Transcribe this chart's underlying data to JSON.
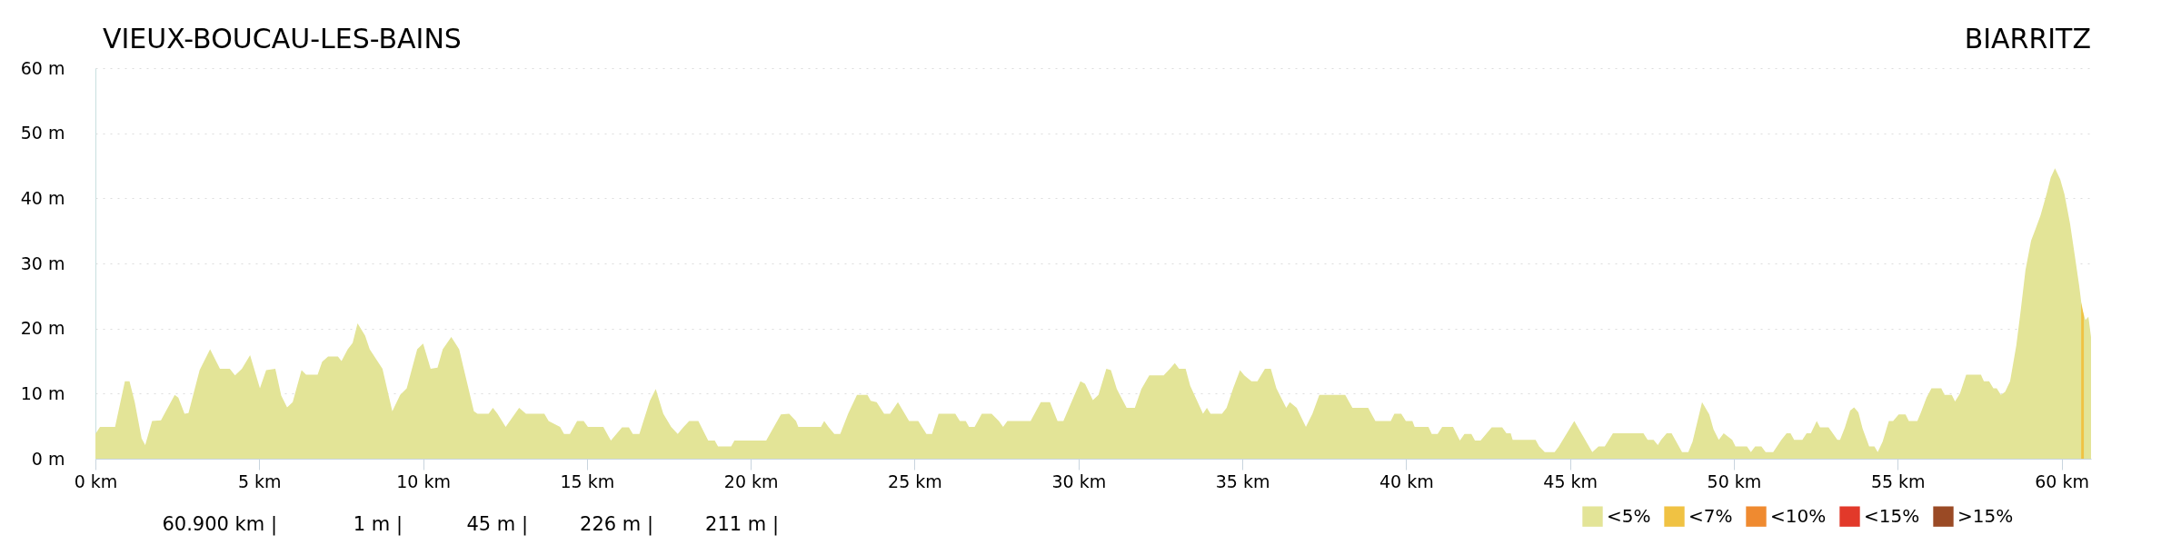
{
  "chart_data": {
    "type": "area",
    "title": "VIEUX-BOUCAU-LES-BAINS",
    "subtitle": "BIARRITZ",
    "xlim": [
      0,
      60.9
    ],
    "ylim": [
      0,
      60
    ],
    "xticks": [
      {
        "value": 0,
        "label": "0 km"
      },
      {
        "value": 5,
        "label": "5 km"
      },
      {
        "value": 10,
        "label": "10 km"
      },
      {
        "value": 15,
        "label": "15 km"
      },
      {
        "value": 20,
        "label": "20 km"
      },
      {
        "value": 25,
        "label": "25 km"
      },
      {
        "value": 30,
        "label": "30 km"
      },
      {
        "value": 35,
        "label": "35 km"
      },
      {
        "value": 40,
        "label": "40 km"
      },
      {
        "value": 45,
        "label": "45 km"
      },
      {
        "value": 50,
        "label": "50 km"
      },
      {
        "value": 55,
        "label": "55 km"
      },
      {
        "value": 60,
        "label": "60 km"
      }
    ],
    "yticks": [
      {
        "value": 0,
        "label": "0 m"
      },
      {
        "value": 10,
        "label": "10 m"
      },
      {
        "value": 20,
        "label": "20 m"
      },
      {
        "value": 30,
        "label": "30 m"
      },
      {
        "value": 40,
        "label": "40 m"
      },
      {
        "value": 50,
        "label": "50 m"
      },
      {
        "value": 60,
        "label": "60 m"
      }
    ],
    "grid": "y",
    "legend": "bottom right",
    "annotations": [
      "60.900 km |",
      "1 m |",
      "45 m |",
      "226 m |",
      "211 m |"
    ],
    "series": [
      {
        "name": "<5%",
        "color": "#e3e497",
        "x": [
          0,
          0.14,
          0.6,
          0.9,
          1.04,
          1.2,
          1.41,
          1.52,
          1.73,
          2.0,
          2.42,
          2.53,
          2.72,
          2.84,
          3.18,
          3.5,
          3.8,
          4.1,
          4.26,
          4.47,
          4.72,
          5.02,
          5.21,
          5.49,
          5.67,
          5.85,
          6.02,
          6.29,
          6.43,
          6.78,
          6.92,
          7.1,
          7.4,
          7.51,
          7.7,
          7.85,
          8.0,
          8.23,
          8.37,
          8.76,
          9.06,
          9.3,
          9.5,
          9.82,
          10.0,
          10.23,
          10.44,
          10.6,
          10.86,
          11.1,
          11.35,
          11.55,
          11.66,
          12.0,
          12.13,
          12.27,
          12.52,
          12.93,
          13.14,
          13.7,
          13.83,
          14.18,
          14.3,
          14.48,
          14.7,
          14.9,
          15.03,
          15.5,
          15.73,
          15.9,
          16.07,
          16.28,
          16.4,
          16.6,
          16.92,
          17.1,
          17.33,
          17.57,
          17.77,
          17.95,
          18.12,
          18.4,
          18.7,
          18.9,
          19.0,
          19.4,
          19.5,
          20.47,
          20.92,
          21.17,
          21.38,
          21.45,
          22.14,
          22.24,
          22.37,
          22.55,
          22.73,
          22.97,
          23.24,
          23.56,
          23.66,
          23.84,
          24.07,
          24.25,
          24.49,
          24.83,
          25.11,
          25.36,
          25.53,
          25.73,
          26.24,
          26.38,
          26.56,
          26.66,
          26.83,
          27.05,
          27.35,
          27.57,
          27.7,
          27.83,
          28.54,
          28.85,
          29.13,
          29.36,
          29.54,
          29.88,
          30.06,
          30.2,
          30.44,
          30.61,
          30.85,
          30.99,
          31.17,
          31.47,
          31.72,
          31.92,
          32.16,
          32.6,
          32.79,
          32.94,
          33.07,
          33.27,
          33.41,
          33.8,
          33.92,
          34.03,
          34.38,
          34.52,
          34.72,
          34.93,
          35.06,
          35.28,
          35.46,
          35.69,
          35.87,
          36.04,
          36.34,
          36.45,
          36.66,
          36.94,
          37.14,
          37.35,
          38.14,
          38.36,
          38.84,
          39.06,
          39.53,
          39.64,
          39.85,
          39.99,
          40.19,
          40.26,
          40.68,
          40.78,
          40.96,
          41.1,
          41.43,
          41.64,
          41.78,
          41.99,
          42.1,
          42.27,
          42.61,
          42.93,
          43.06,
          43.19,
          43.25,
          43.95,
          44.06,
          44.23,
          44.53,
          44.66,
          45.13,
          45.68,
          45.87,
          46.06,
          46.31,
          47.24,
          47.37,
          47.55,
          47.68,
          47.78,
          47.95,
          48.1,
          48.42,
          48.61,
          48.74,
          49.03,
          49.25,
          49.38,
          49.54,
          49.69,
          49.95,
          50.05,
          50.4,
          50.52,
          50.65,
          50.84,
          50.97,
          51.2,
          51.45,
          51.61,
          51.73,
          51.84,
          52.09,
          52.22,
          52.35,
          52.53,
          52.63,
          52.89,
          53.16,
          53.24,
          53.39,
          53.55,
          53.67,
          53.8,
          53.93,
          54.13,
          54.29,
          54.39,
          54.54,
          54.73,
          54.86,
          55.03,
          55.24,
          55.34,
          55.6,
          55.71,
          55.88,
          56.03,
          56.33,
          56.43,
          56.65,
          56.75,
          56.9,
          57.09,
          57.54,
          57.63,
          57.79,
          57.92,
          58.02,
          58.15,
          58.28,
          58.43,
          58.62,
          58.75,
          58.9,
          59.07,
          59.2,
          59.36,
          59.54,
          59.67,
          59.8,
          59.96,
          60.09,
          60.26,
          60.41,
          60.54,
          60.63,
          60.73,
          60.82,
          60.9
        ],
        "values": [
          3.8,
          4.9,
          4.9,
          11.9,
          11.9,
          8.7,
          3.1,
          2.1,
          5.8,
          5.9,
          9.8,
          9.4,
          6.9,
          7,
          13.6,
          16.8,
          13.8,
          13.8,
          12.8,
          13.8,
          15.9,
          10.8,
          13.6,
          13.8,
          9.7,
          7.9,
          8.7,
          13.6,
          12.9,
          12.9,
          14.9,
          15.7,
          15.7,
          15,
          16.8,
          17.8,
          20.8,
          18.9,
          16.8,
          13.8,
          7.3,
          9.8,
          10.8,
          16.8,
          17.7,
          13.8,
          14,
          16.8,
          18.7,
          16.8,
          11.5,
          7.3,
          6.9,
          6.9,
          7.8,
          6.9,
          4.9,
          7.8,
          6.9,
          6.9,
          5.8,
          4.9,
          3.8,
          3.8,
          5.8,
          5.8,
          4.9,
          4.9,
          2.8,
          3.8,
          4.8,
          4.8,
          3.8,
          3.8,
          8.9,
          10.7,
          6.9,
          4.9,
          3.8,
          4.9,
          5.8,
          5.8,
          2.8,
          2.8,
          1.9,
          1.9,
          2.8,
          2.8,
          6.8,
          6.9,
          5.8,
          4.9,
          4.9,
          5.8,
          4.9,
          3.8,
          3.8,
          6.9,
          9.8,
          9.8,
          8.9,
          8.7,
          6.9,
          6.9,
          8.7,
          5.8,
          5.8,
          3.8,
          3.8,
          6.9,
          6.9,
          5.8,
          5.8,
          4.9,
          4.9,
          6.9,
          6.9,
          5.8,
          4.9,
          5.8,
          5.8,
          8.7,
          8.7,
          5.8,
          5.8,
          9.8,
          11.9,
          11.5,
          9,
          9.8,
          13.8,
          13.6,
          10.7,
          7.8,
          7.8,
          10.7,
          12.8,
          12.8,
          13.8,
          14.7,
          13.8,
          13.8,
          11.2,
          6.9,
          7.8,
          6.9,
          6.9,
          7.8,
          10.8,
          13.6,
          12.8,
          11.9,
          11.9,
          13.8,
          13.8,
          10.8,
          7.8,
          8.7,
          7.8,
          4.9,
          6.9,
          9.8,
          9.8,
          7.8,
          7.8,
          5.8,
          5.8,
          6.9,
          6.9,
          5.8,
          5.8,
          4.9,
          4.9,
          3.8,
          3.8,
          4.9,
          4.9,
          2.8,
          3.8,
          3.8,
          2.8,
          2.8,
          4.8,
          4.8,
          3.9,
          3.9,
          2.9,
          2.9,
          1.9,
          1,
          1,
          1.9,
          5.8,
          1,
          1.9,
          1.9,
          3.9,
          3.9,
          2.9,
          2.9,
          2.1,
          2.9,
          3.9,
          3.9,
          1,
          1,
          2.6,
          8.7,
          6.8,
          4.5,
          2.9,
          3.9,
          2.9,
          1.9,
          1.9,
          1,
          1.9,
          1.9,
          1,
          1,
          2.9,
          3.9,
          3.9,
          2.9,
          2.9,
          3.9,
          3.9,
          5.8,
          4.8,
          4.8,
          2.9,
          2.9,
          4.8,
          7.4,
          7.9,
          7.1,
          4.6,
          1.9,
          1.9,
          1,
          2.6,
          5.8,
          5.8,
          6.8,
          6.8,
          5.8,
          5.8,
          7.1,
          9.4,
          10.8,
          10.8,
          9.8,
          9.8,
          8.8,
          10,
          12.9,
          12.9,
          11.9,
          11.9,
          10.8,
          10.8,
          9.8,
          10.3,
          11.9,
          17.4,
          22.6,
          29,
          33.5,
          35.2,
          37.4,
          40.6,
          43.2,
          44.6,
          42.9,
          40.6,
          36.1,
          31,
          26.5,
          22.9,
          21.3,
          21.8,
          18.7
        ]
      },
      {
        "name": "<7%",
        "color": "#f0c243",
        "x": [
          60.6,
          60.68
        ],
        "values": [
          24,
          22
        ]
      },
      {
        "name": "<10%",
        "color": "#ef8a30"
      },
      {
        "name": "<15%",
        "color": "#e2392a"
      },
      {
        "name": ">15%",
        "color": "#9a4a25"
      }
    ]
  }
}
